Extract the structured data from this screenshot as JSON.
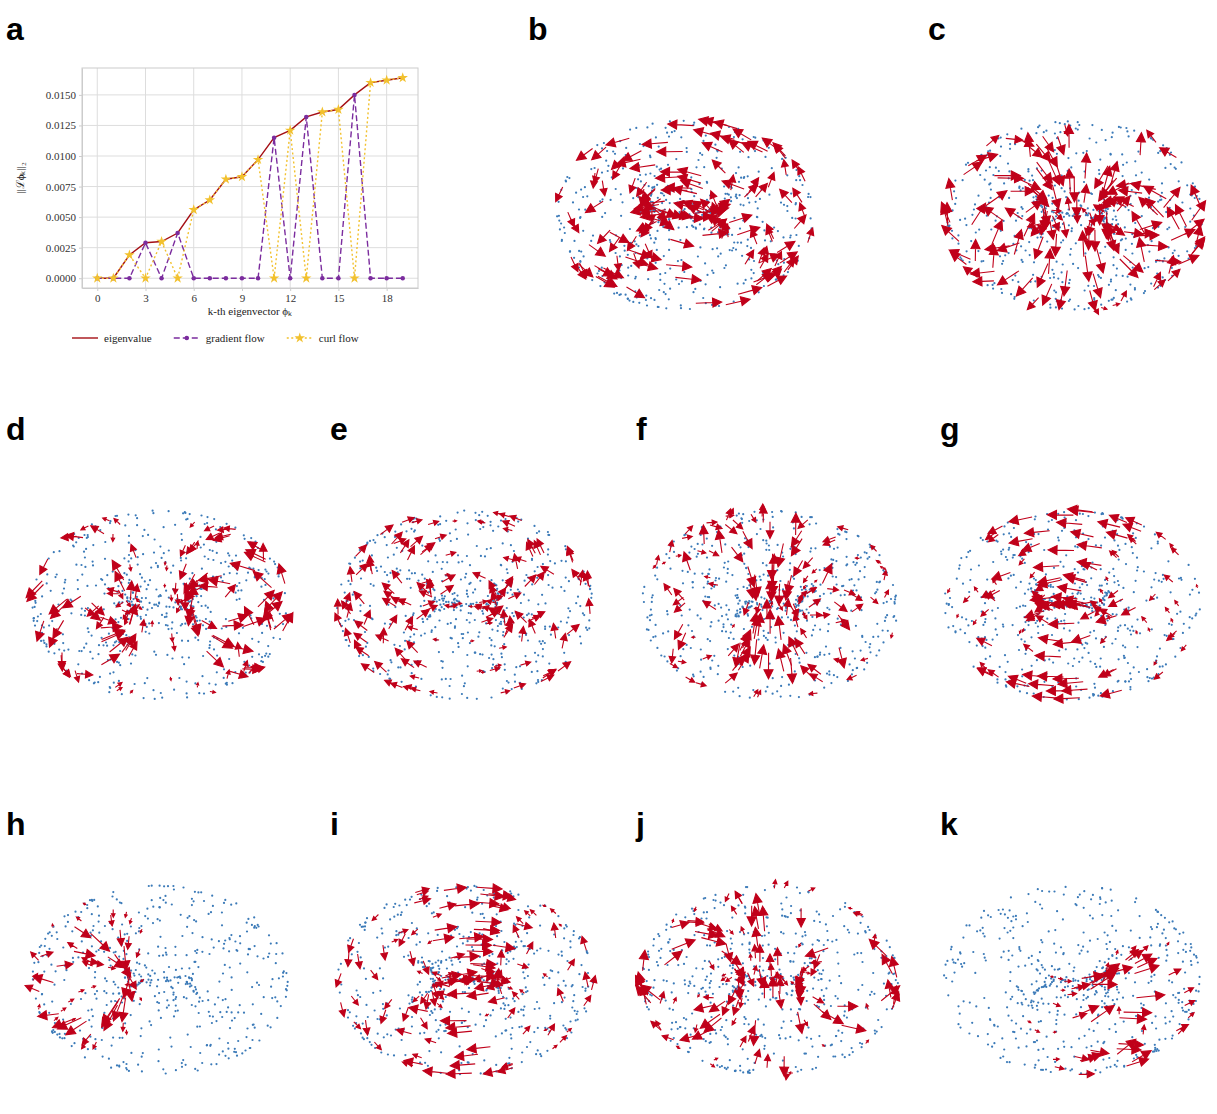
{
  "chart_data": {
    "type": "line",
    "x_label": "k-th eigenvector ϕₖ",
    "y_label": "||ℒϕₖ||₂",
    "x": [
      0,
      1,
      2,
      3,
      4,
      5,
      6,
      7,
      8,
      9,
      10,
      11,
      12,
      13,
      14,
      15,
      16,
      17,
      18,
      19
    ],
    "series": [
      {
        "name": "eigenvalue",
        "color": "#a50f15",
        "line_style": "solid",
        "marker": "none",
        "values": [
          0,
          0,
          0.0019,
          0.0029,
          0.003,
          0.0037,
          0.0056,
          0.0064,
          0.0081,
          0.0083,
          0.0097,
          0.0115,
          0.0121,
          0.0132,
          0.0136,
          0.0138,
          0.015,
          0.016,
          0.0162,
          0.0164
        ]
      },
      {
        "name": "gradient flow",
        "color": "#7b2c9e",
        "line_style": "dashed",
        "marker": "circle",
        "values": [
          0,
          0,
          0,
          0.0029,
          0,
          0.0037,
          0,
          0,
          0,
          0,
          0,
          0.0115,
          0,
          0.0132,
          0,
          0,
          0.015,
          0,
          0,
          0
        ]
      },
      {
        "name": "curl flow",
        "color": "#f2c12e",
        "line_style": "dotted",
        "marker": "star",
        "values": [
          0,
          0,
          0.0019,
          0,
          0.003,
          0,
          0.0056,
          0.0064,
          0.0081,
          0.0083,
          0.0097,
          0,
          0.0121,
          0,
          0.0136,
          0.0138,
          0,
          0.016,
          0.0162,
          0.0164
        ]
      }
    ],
    "xlim": [
      -0.95,
      19.95
    ],
    "ylim": [
      -0.0008,
      0.0172
    ],
    "xticks": [
      0,
      3,
      6,
      9,
      12,
      15,
      18
    ],
    "yticks": [
      {
        "value": 0,
        "label": "0.0000"
      },
      {
        "value": 0.0025,
        "label": "0.0025"
      },
      {
        "value": 0.005,
        "label": "0.0050"
      },
      {
        "value": 0.0075,
        "label": "0.0075"
      },
      {
        "value": 0.01,
        "label": "0.0100"
      },
      {
        "value": 0.0125,
        "label": "0.0125"
      },
      {
        "value": 0.015,
        "label": "0.0150"
      }
    ],
    "grid": true,
    "legend": "bottom"
  },
  "panel_labels": [
    "a",
    "b",
    "c",
    "d",
    "e",
    "f",
    "g",
    "h",
    "i",
    "j",
    "k"
  ]
}
